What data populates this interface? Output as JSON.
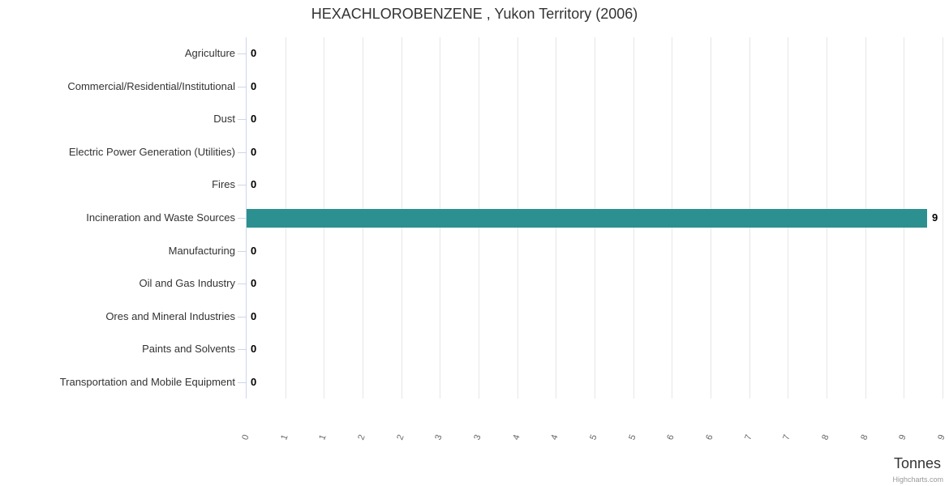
{
  "chart": {
    "title": "HEXACHLOROBENZENE , Yukon Territory (2006)",
    "credit": "Highcharts.com"
  },
  "chart_data": {
    "type": "bar",
    "orientation": "horizontal",
    "title": "HEXACHLOROBENZENE , Yukon Territory (2006)",
    "categories": [
      "Agriculture",
      "Commercial/Residential/Institutional",
      "Dust",
      "Electric Power Generation (Utilities)",
      "Fires",
      "Incineration and Waste Sources",
      "Manufacturing",
      "Oil and Gas Industry",
      "Ores and Mineral Industries",
      "Paints and Solvents",
      "Transportation and Mobile Equipment"
    ],
    "values": [
      0,
      0,
      0,
      0,
      0,
      9,
      0,
      0,
      0,
      0,
      0
    ],
    "data_labels": [
      "0",
      "0",
      "0",
      "0",
      "0",
      "9",
      "0",
      "0",
      "0",
      "0",
      "0"
    ],
    "xlabel": "Tonnes",
    "ylabel": "",
    "xlim": [
      0,
      9.2
    ],
    "xtick_values": [
      0,
      0.5,
      1,
      1.5,
      2,
      2.5,
      3,
      3.5,
      4,
      4.5,
      5,
      5.5,
      6,
      6.5,
      7,
      7.5,
      8,
      8.5,
      9
    ],
    "xtick_labels": [
      "0",
      "1",
      "1",
      "2",
      "2",
      "3",
      "3",
      "4",
      "4",
      "5",
      "5",
      "6",
      "6",
      "7",
      "7",
      "8",
      "8",
      "9",
      "9"
    ],
    "grid": "vertical-only",
    "legend": "none",
    "colors": {
      "bar": "#2b908f",
      "gridline": "#e6e6e6",
      "axis_line": "#ccd6eb",
      "title_text": "#333333",
      "category_text": "#333333",
      "tick_text": "#666666",
      "data_label_text": "#000000",
      "credit_text": "#999999"
    }
  }
}
